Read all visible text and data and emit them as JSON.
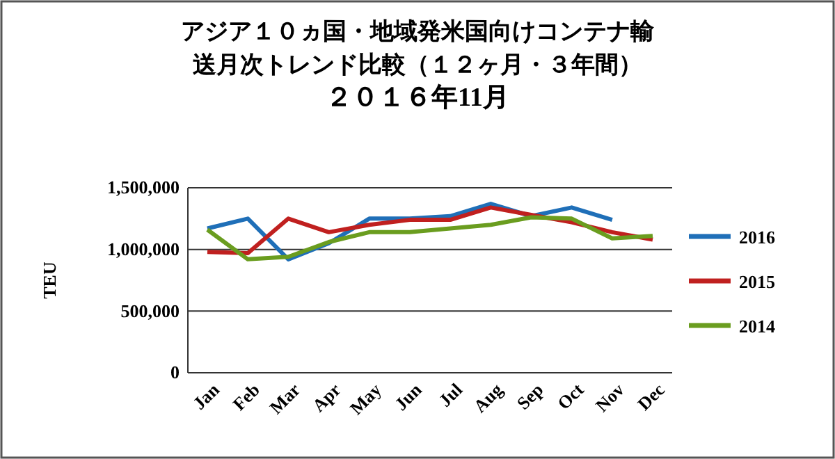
{
  "chart_data": {
    "type": "line",
    "title": "アジア１０ヵ国・地域発米国向けコンテナ輸送月次トレンド比較（１２ヶ月・３年間）",
    "subtitle": "２０１６年11月",
    "ylabel": "TEU",
    "categories": [
      "Jan",
      "Feb",
      "Mar",
      "Apr",
      "May",
      "Jun",
      "Jul",
      "Aug",
      "Sep",
      "Oct",
      "Nov",
      "Dec"
    ],
    "series": [
      {
        "name": "2016",
        "color": "#1f6fb8",
        "values": [
          1170000,
          1250000,
          920000,
          1050000,
          1250000,
          1250000,
          1270000,
          1370000,
          1270000,
          1340000,
          1240000,
          null
        ]
      },
      {
        "name": "2015",
        "color": "#c0201f",
        "values": [
          980000,
          970000,
          1250000,
          1140000,
          1200000,
          1240000,
          1240000,
          1340000,
          1280000,
          1220000,
          1140000,
          1080000
        ]
      },
      {
        "name": "2014",
        "color": "#6a9d1f",
        "values": [
          1160000,
          920000,
          940000,
          1060000,
          1140000,
          1140000,
          1170000,
          1200000,
          1260000,
          1250000,
          1090000,
          1110000
        ]
      }
    ],
    "ylim": [
      0,
      1500000
    ],
    "yticks": [
      {
        "value": 0,
        "label": "0"
      },
      {
        "value": 500000,
        "label": "500,000"
      },
      {
        "value": 1000000,
        "label": "1,000,000"
      },
      {
        "value": 1500000,
        "label": "1,500,000"
      }
    ],
    "grid": "y",
    "legend": "right",
    "marker": "none",
    "line_style": "solid"
  }
}
